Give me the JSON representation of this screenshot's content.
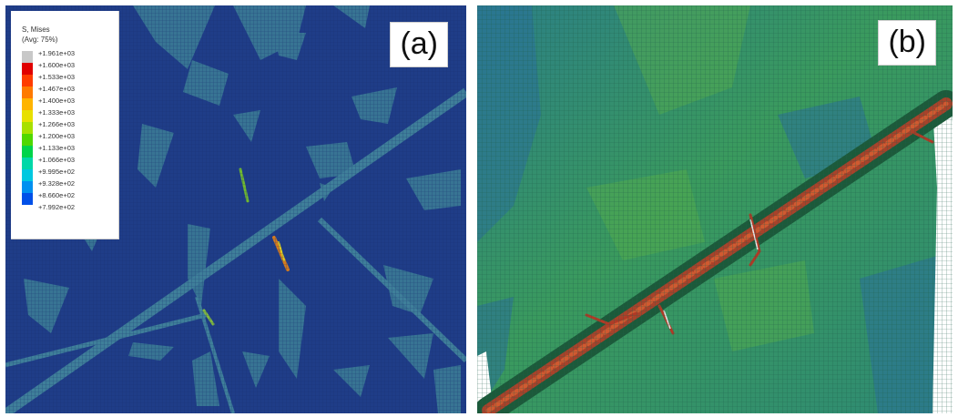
{
  "panels": [
    {
      "label": "(a)"
    },
    {
      "label": "(b)"
    }
  ],
  "legend": {
    "title": "S, Mises",
    "subtitle": "(Avg: 75%)",
    "values": [
      "+1.961e+03",
      "+1.600e+03",
      "+1.533e+03",
      "+1.467e+03",
      "+1.400e+03",
      "+1.333e+03",
      "+1.266e+03",
      "+1.200e+03",
      "+1.133e+03",
      "+1.066e+03",
      "+9.995e+02",
      "+9.328e+02",
      "+8.660e+02",
      "+7.992e+02"
    ],
    "colors": [
      "#c8c8c8",
      "#e00000",
      "#ff3c00",
      "#ff7a00",
      "#ffb400",
      "#e8e000",
      "#a8e000",
      "#50d800",
      "#00d44a",
      "#00d8a8",
      "#00c8e0",
      "#0090f0",
      "#0050e8",
      "#0010c8"
    ]
  },
  "colors": {
    "panel_a_background": "#1e3c86",
    "panel_a_bands": "#3e7f9a",
    "panel_b_background": "#2f8f6a",
    "panel_b_band": "#a83a20"
  }
}
